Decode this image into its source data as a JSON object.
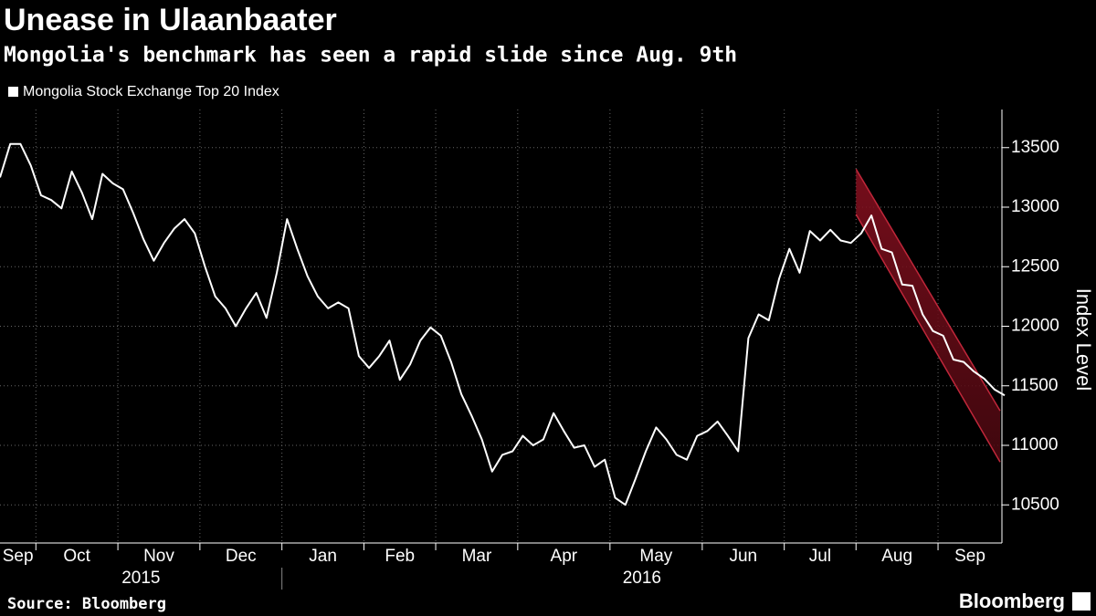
{
  "chart_data": {
    "type": "line",
    "title": "Unease in Ulaanbaater",
    "subtitle": "Mongolia's benchmark has seen a rapid slide since Aug. 9th",
    "y_axis_label": "Index Level",
    "source": "Source: Bloomberg",
    "brand": "Bloomberg",
    "x_labels": [
      "Sep",
      "Oct",
      "Nov",
      "Dec",
      "Jan",
      "Feb",
      "Mar",
      "Apr",
      "May",
      "Jun",
      "Jul",
      "Aug",
      "Sep"
    ],
    "years": [
      "2015",
      "2016"
    ],
    "series": [
      {
        "name": "Mongolia Stock Exchange Top 20 Index",
        "color": "#ffffff",
        "x": [
          "2015-09",
          "2015-09",
          "2015-09",
          "2015-09",
          "2015-10",
          "2015-10",
          "2015-10",
          "2015-10",
          "2015-10",
          "2015-10",
          "2015-10",
          "2015-10",
          "2015-11",
          "2015-11",
          "2015-11",
          "2015-11",
          "2015-11",
          "2015-11",
          "2015-11",
          "2015-11",
          "2015-12",
          "2015-12",
          "2015-12",
          "2015-12",
          "2015-12",
          "2015-12",
          "2015-12",
          "2015-12",
          "2016-01",
          "2016-01",
          "2016-01",
          "2016-01",
          "2016-01",
          "2016-01",
          "2016-01",
          "2016-01",
          "2016-02",
          "2016-02",
          "2016-02",
          "2016-02",
          "2016-02",
          "2016-02",
          "2016-02",
          "2016-03",
          "2016-03",
          "2016-03",
          "2016-03",
          "2016-03",
          "2016-03",
          "2016-03",
          "2016-03",
          "2016-04",
          "2016-04",
          "2016-04",
          "2016-04",
          "2016-04",
          "2016-04",
          "2016-04",
          "2016-04",
          "2016-04",
          "2016-05",
          "2016-05",
          "2016-05",
          "2016-05",
          "2016-05",
          "2016-05",
          "2016-05",
          "2016-05",
          "2016-05",
          "2016-06",
          "2016-06",
          "2016-06",
          "2016-06",
          "2016-06",
          "2016-06",
          "2016-06",
          "2016-06",
          "2016-07",
          "2016-07",
          "2016-07",
          "2016-07",
          "2016-07",
          "2016-07",
          "2016-07",
          "2016-08",
          "2016-08",
          "2016-08",
          "2016-08",
          "2016-08",
          "2016-08",
          "2016-08",
          "2016-08",
          "2016-09",
          "2016-09",
          "2016-09",
          "2016-09",
          "2016-09",
          "2016-09",
          "2016-09"
        ],
        "values": [
          13250,
          13530,
          13530,
          13350,
          13100,
          13060,
          12990,
          13300,
          13120,
          12900,
          13280,
          13200,
          13150,
          12950,
          12730,
          12550,
          12700,
          12820,
          12900,
          12780,
          12500,
          12250,
          12150,
          12000,
          12150,
          12280,
          12070,
          12450,
          12900,
          12650,
          12420,
          12250,
          12150,
          12200,
          12150,
          11750,
          11650,
          11750,
          11880,
          11550,
          11680,
          11880,
          11990,
          11920,
          11700,
          11430,
          11250,
          11050,
          10780,
          10920,
          10950,
          11080,
          11000,
          11050,
          11270,
          11120,
          10980,
          11000,
          10820,
          10880,
          10560,
          10500,
          10720,
          10950,
          11150,
          11050,
          10920,
          10880,
          11080,
          11120,
          11200,
          11080,
          10950,
          11900,
          12100,
          12050,
          12400,
          12650,
          12450,
          12800,
          12720,
          12810,
          12720,
          12700,
          12780,
          12930,
          12650,
          12620,
          12350,
          12340,
          12100,
          11960,
          11920,
          11720,
          11700,
          11620,
          11560,
          11470,
          11420
        ]
      }
    ],
    "channel": {
      "upper": [
        13320,
        11290
      ],
      "lower": [
        12940,
        10860
      ],
      "color": "#c0273a"
    },
    "ylim": [
      10180,
      13820
    ],
    "yticks": [
      10500,
      11000,
      11500,
      12000,
      12500,
      13000,
      13500
    ],
    "grid": true,
    "legend": "top-left"
  }
}
